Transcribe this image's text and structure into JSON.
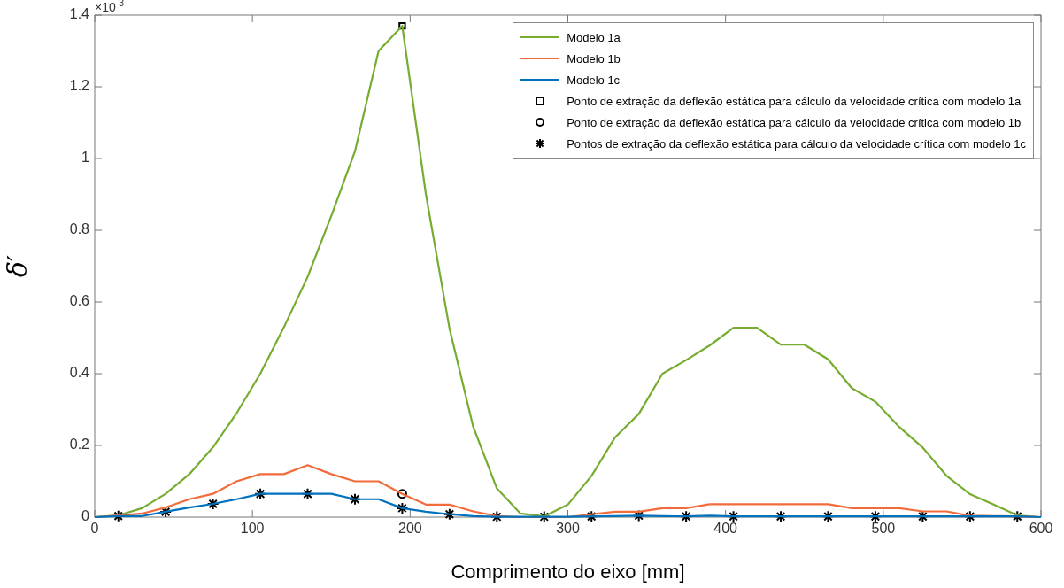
{
  "chart_data": {
    "type": "line",
    "xlabel": "Comprimento do eixo [mm]",
    "ylabel": "δ′",
    "annotations": [
      "×10$^{-3}$"
    ],
    "xlim": [
      0,
      600
    ],
    "xticks": [
      0,
      100,
      200,
      300,
      400,
      500,
      600
    ],
    "ylim": [
      0,
      1.4
    ],
    "yticks": [
      0,
      0.2,
      0.4,
      0.6,
      0.8,
      1,
      1.2,
      1.4
    ],
    "legend": "top right",
    "marker": "none",
    "line_style": "solid",
    "x": [
      0,
      15,
      30,
      45,
      60,
      75,
      90,
      105,
      120,
      135,
      150,
      165,
      180,
      195,
      210,
      225,
      240,
      255,
      270,
      285,
      300,
      315,
      330,
      345,
      360,
      375,
      390,
      405,
      420,
      435,
      450,
      465,
      480,
      495,
      510,
      525,
      540,
      555,
      570,
      585,
      600
    ],
    "series": [
      {
        "name": "Modelo 1a",
        "color": "#77ac30",
        "values": [
          0,
          0.005,
          0.025,
          0.065,
          0.12,
          0.195,
          0.29,
          0.4,
          0.53,
          0.67,
          0.84,
          1.02,
          1.3,
          1.37,
          0.9,
          0.525,
          0.252,
          0.08,
          0.01,
          0.002,
          0.035,
          0.115,
          0.223,
          0.288,
          0.4,
          0.438,
          0.479,
          0.528,
          0.528,
          0.481,
          0.481,
          0.44,
          0.36,
          0.322,
          0.252,
          0.194,
          0.116,
          0.064,
          0.035,
          0.005,
          0
        ]
      },
      {
        "name": "Modelo 1b",
        "color": "#f26b3a",
        "values": [
          0,
          0.005,
          0.01,
          0.027,
          0.05,
          0.065,
          0.1,
          0.12,
          0.12,
          0.145,
          0.12,
          0.1,
          0.1,
          0.065,
          0.035,
          0.035,
          0.016,
          0.003,
          0,
          0,
          0,
          0.008,
          0.015,
          0.015,
          0.025,
          0.025,
          0.036,
          0.036,
          0.036,
          0.036,
          0.036,
          0.036,
          0.025,
          0.025,
          0.025,
          0.016,
          0.016,
          0.004,
          0.003,
          0.002,
          0
        ]
      },
      {
        "name": "Modelo 1c",
        "color": "#0072bd",
        "values": [
          0,
          0.003,
          0.003,
          0.015,
          0.027,
          0.037,
          0.05,
          0.065,
          0.065,
          0.065,
          0.065,
          0.05,
          0.05,
          0.025,
          0.015,
          0.008,
          0.003,
          0.001,
          0.001,
          0.001,
          0.001,
          0.002,
          0.003,
          0.004,
          0.003,
          0.002,
          0.004,
          0.002,
          0.002,
          0.002,
          0.002,
          0.002,
          0.002,
          0.002,
          0.002,
          0.002,
          0.002,
          0.002,
          0.002,
          0.002,
          0
        ]
      },
      {
        "type": "scatter",
        "marker": "square",
        "name": "Ponto de extração da deflexão estática para cálculo da velocidade crítica com modelo 1a",
        "color": "#000000",
        "x": [
          195
        ],
        "values": [
          1.37
        ]
      },
      {
        "type": "scatter",
        "marker": "circle",
        "name": "Ponto de extração da deflexão estática para cálculo da velocidade crítica com modelo 1b",
        "color": "#000000",
        "x": [
          195
        ],
        "values": [
          0.065
        ]
      },
      {
        "type": "scatter",
        "marker": "cross",
        "name": "Pontos de extração da deflexão estática para cálculo da velocidade crítica com modelo 1c",
        "color": "#000000",
        "x": [
          15,
          45,
          75,
          105,
          135,
          165,
          195,
          225,
          255,
          285,
          315,
          345,
          375,
          405,
          435,
          465,
          495,
          525,
          555,
          585
        ],
        "values": [
          0.003,
          0.015,
          0.037,
          0.065,
          0.065,
          0.05,
          0.025,
          0.008,
          0.001,
          0.001,
          0.002,
          0.004,
          0.002,
          0.002,
          0.002,
          0.002,
          0.002,
          0.002,
          0.002,
          0.002
        ]
      }
    ]
  }
}
